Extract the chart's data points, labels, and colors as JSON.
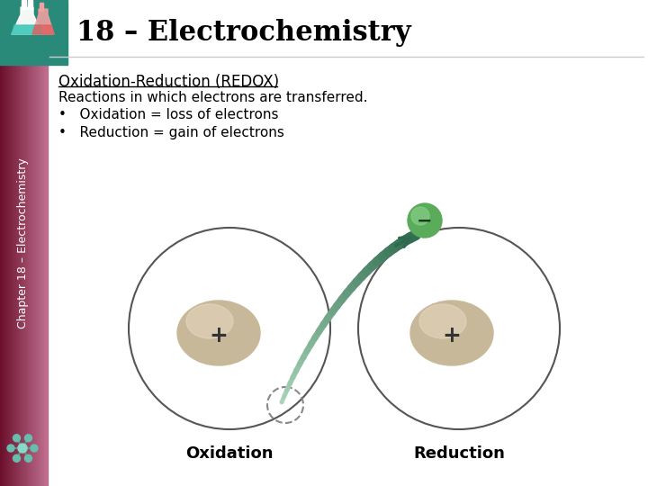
{
  "title": "18 – Electrochemistry",
  "sidebar_text": "Chapter 18 – Electrochemistry",
  "heading": "Oxidation-Reduction (REDOX)",
  "line1": "Reactions in which electrons are transferred.",
  "bullet1": "Oxidation = loss of electrons",
  "bullet2": "Reduction = gain of electrons",
  "label_oxidation": "Oxidation",
  "label_reduction": "Reduction",
  "bg_color": "#ffffff",
  "sidebar_color1": "#6b0f2b",
  "sidebar_color2": "#be6e8e",
  "title_color": "#000000",
  "text_color": "#000000",
  "atom_color": "#c8b89a",
  "atom_highlight": "#e8d8c0",
  "electron_color": "#5aab5a",
  "electron_highlight": "#8acf8a",
  "arrow_color_dark": "#2e6b4e",
  "arrow_color_light": "#a8d4b8",
  "circle_color": "#555555",
  "dashed_circle_color": "#888888",
  "plus_color": "#333333",
  "minus_color": "#1a3a1a",
  "icon_bg": "#2a8a7a",
  "mol_line_color": "#4a9a8a",
  "mol_node_color": "#6abcac",
  "mol_center_color": "#8ad8c8"
}
